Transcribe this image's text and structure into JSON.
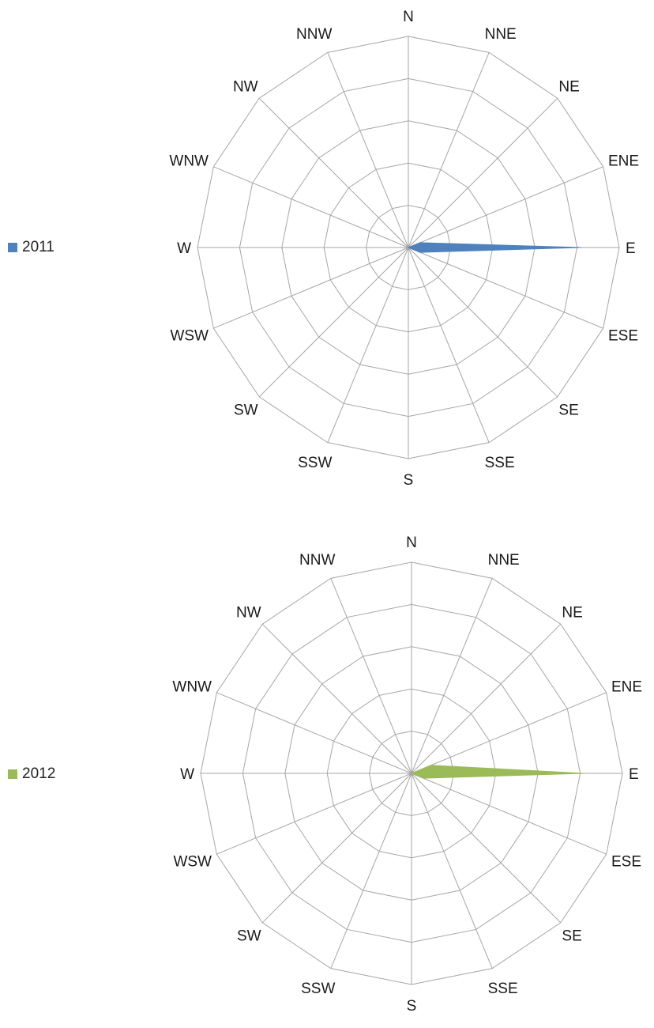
{
  "chart_data": [
    {
      "type": "radar",
      "categories": [
        "N",
        "NNE",
        "NE",
        "ENE",
        "E",
        "ESE",
        "SE",
        "SSE",
        "S",
        "SSW",
        "SW",
        "WSW",
        "W",
        "WNW",
        "NW",
        "NNW"
      ],
      "series": [
        {
          "name": "2011",
          "color": "#4f81bd",
          "values": [
            0,
            0,
            0,
            0.3,
            4.1,
            0.3,
            0,
            0,
            0,
            0,
            0,
            0,
            0,
            0,
            0,
            0
          ]
        }
      ],
      "rmax": 5,
      "rings": 5,
      "grid": true,
      "legend": "left"
    },
    {
      "type": "radar",
      "categories": [
        "N",
        "NNE",
        "NE",
        "ENE",
        "E",
        "ESE",
        "SE",
        "SSE",
        "S",
        "SSW",
        "SW",
        "WSW",
        "W",
        "WNW",
        "NW",
        "NNW"
      ],
      "series": [
        {
          "name": "2012",
          "color": "#9bbb59",
          "values": [
            0,
            0,
            0,
            0.5,
            4.1,
            0.3,
            0,
            0,
            0,
            0,
            0,
            0,
            0,
            0,
            0,
            0
          ]
        }
      ],
      "rmax": 5,
      "rings": 5,
      "grid": true,
      "legend": "left"
    }
  ]
}
